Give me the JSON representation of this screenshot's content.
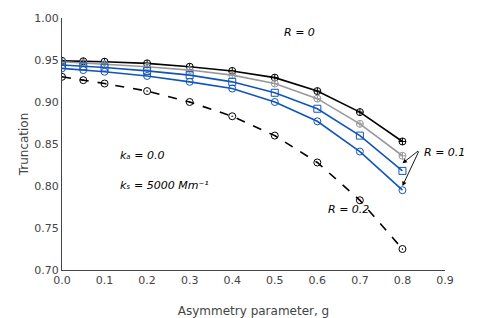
{
  "chart_data": {
    "type": "line",
    "x": [
      0.0,
      0.05,
      0.1,
      0.2,
      0.3,
      0.4,
      0.5,
      0.6,
      0.7,
      0.8
    ],
    "series": [
      {
        "color": "#000000",
        "marker": "circle-cross",
        "line_style": "solid",
        "values": [
          0.949,
          0.9485,
          0.948,
          0.946,
          0.942,
          0.937,
          0.929,
          0.913,
          0.888,
          0.853
        ]
      },
      {
        "color": "#999999",
        "marker": "circle-cross",
        "line_style": "solid",
        "values": [
          0.948,
          0.9465,
          0.945,
          0.942,
          0.938,
          0.932,
          0.922,
          0.904,
          0.874,
          0.836
        ]
      },
      {
        "color": "#1155bb",
        "marker": "square",
        "line_style": "solid",
        "values": [
          0.944,
          0.9425,
          0.941,
          0.937,
          0.932,
          0.924,
          0.911,
          0.892,
          0.86,
          0.818
        ]
      },
      {
        "color": "#1155bb",
        "marker": "circle",
        "line_style": "solid",
        "values": [
          0.94,
          0.938,
          0.936,
          0.931,
          0.924,
          0.916,
          0.9,
          0.877,
          0.841,
          0.795
        ]
      },
      {
        "color": "#000000",
        "marker": "circle-dot",
        "line_style": "dashed",
        "values": [
          0.93,
          0.926,
          0.922,
          0.913,
          0.9,
          0.883,
          0.86,
          0.828,
          0.783,
          0.725
        ]
      }
    ],
    "xlabel": "Asymmetry parameter, g",
    "ylabel": "Truncation",
    "xlim": [
      0.0,
      0.9
    ],
    "ylim": [
      0.7,
      1.0
    ],
    "xticks": [
      {
        "value": 0.0,
        "label": "0.0"
      },
      0.1,
      0.2,
      0.3,
      0.4,
      0.5,
      0.6,
      0.7,
      0.8,
      0.9
    ],
    "yticks": [
      {
        "value": 0.7,
        "label": "0.70"
      },
      0.75,
      {
        "value": 0.8,
        "label": "0.80"
      },
      0.85,
      {
        "value": 0.9,
        "label": "0.90"
      },
      0.95,
      {
        "value": 1.0,
        "label": "1.00"
      }
    ],
    "annotations": [
      "kₐ = 0.0",
      "kₛ = 5000 Mm⁻¹",
      "R = 0",
      "R = 0.1",
      "R = 0.2"
    ],
    "grid": false
  }
}
